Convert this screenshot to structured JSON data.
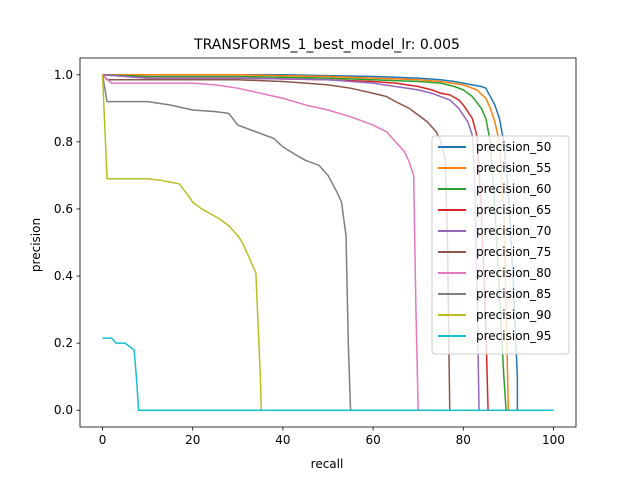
{
  "chart_data": {
    "type": "line",
    "title": "TRANSFORMS_1_best_model_lr: 0.005",
    "xlabel": "recall",
    "ylabel": "precision",
    "xlim": [
      -5,
      105
    ],
    "ylim": [
      -0.05,
      1.05
    ],
    "xticks": [
      0,
      20,
      40,
      60,
      80,
      100
    ],
    "yticks": [
      0.0,
      0.2,
      0.4,
      0.6,
      0.8,
      1.0
    ],
    "xtick_labels": [
      "0",
      "20",
      "40",
      "60",
      "80",
      "100"
    ],
    "ytick_labels": [
      "0.0",
      "0.2",
      "0.4",
      "0.6",
      "0.8",
      "1.0"
    ],
    "grid": false,
    "legend_position": "right",
    "series": [
      {
        "name": "precision_50",
        "color": "#1f77b4",
        "x": [
          0,
          10,
          20,
          40,
          60,
          70,
          75,
          78,
          80,
          82,
          84,
          85,
          86,
          87,
          88,
          89,
          90,
          91,
          92,
          92,
          100
        ],
        "y": [
          1.0,
          1.0,
          1.0,
          1.0,
          0.995,
          0.99,
          0.985,
          0.98,
          0.975,
          0.97,
          0.965,
          0.96,
          0.935,
          0.91,
          0.87,
          0.8,
          0.65,
          0.4,
          0.1,
          0.0,
          0.0
        ]
      },
      {
        "name": "precision_55",
        "color": "#ff7f0e",
        "x": [
          0,
          10,
          30,
          50,
          60,
          70,
          75,
          80,
          83,
          85,
          86,
          87,
          88,
          89,
          89.5,
          90,
          100
        ],
        "y": [
          1.0,
          1.0,
          1.0,
          0.995,
          0.99,
          0.985,
          0.98,
          0.97,
          0.955,
          0.93,
          0.9,
          0.86,
          0.8,
          0.6,
          0.3,
          0.0,
          0.0
        ]
      },
      {
        "name": "precision_60",
        "color": "#2ca02c",
        "x": [
          0,
          10,
          30,
          50,
          60,
          70,
          75,
          78,
          80,
          82,
          84,
          85,
          86,
          87,
          88,
          89,
          89.5,
          100
        ],
        "y": [
          1.0,
          0.995,
          0.995,
          0.99,
          0.985,
          0.98,
          0.975,
          0.965,
          0.955,
          0.935,
          0.9,
          0.87,
          0.8,
          0.6,
          0.35,
          0.1,
          0.0,
          0.0
        ]
      },
      {
        "name": "precision_65",
        "color": "#d62728",
        "x": [
          0,
          10,
          30,
          50,
          60,
          65,
          70,
          73,
          75,
          77,
          79,
          80,
          82,
          83,
          84,
          85,
          85.5,
          100
        ],
        "y": [
          1.0,
          0.99,
          0.99,
          0.985,
          0.98,
          0.975,
          0.965,
          0.955,
          0.945,
          0.94,
          0.925,
          0.91,
          0.87,
          0.82,
          0.6,
          0.25,
          0.0,
          0.0
        ]
      },
      {
        "name": "precision_70",
        "color": "#9467bd",
        "x": [
          0,
          10,
          30,
          50,
          60,
          65,
          70,
          73,
          75,
          77,
          79,
          80,
          81,
          82,
          82.5,
          83,
          83.5,
          100
        ],
        "y": [
          1.0,
          0.99,
          0.99,
          0.985,
          0.975,
          0.965,
          0.955,
          0.945,
          0.935,
          0.925,
          0.9,
          0.88,
          0.86,
          0.82,
          0.7,
          0.4,
          0.0,
          0.0
        ]
      },
      {
        "name": "precision_75",
        "color": "#8c564b",
        "x": [
          0,
          1,
          10,
          30,
          40,
          45,
          50,
          55,
          60,
          63,
          65,
          68,
          70,
          72,
          74,
          75,
          76,
          76.5,
          77,
          100
        ],
        "y": [
          1.0,
          0.985,
          0.985,
          0.985,
          0.98,
          0.975,
          0.97,
          0.96,
          0.945,
          0.935,
          0.92,
          0.9,
          0.88,
          0.86,
          0.83,
          0.8,
          0.75,
          0.5,
          0.0,
          0.0
        ]
      },
      {
        "name": "precision_80",
        "color": "#e377c2",
        "x": [
          0,
          2,
          10,
          20,
          25,
          30,
          35,
          40,
          45,
          50,
          55,
          60,
          63,
          65,
          67,
          68,
          69,
          69.5,
          70,
          100
        ],
        "y": [
          1.0,
          0.975,
          0.975,
          0.975,
          0.97,
          0.96,
          0.945,
          0.93,
          0.91,
          0.895,
          0.875,
          0.85,
          0.83,
          0.8,
          0.77,
          0.74,
          0.7,
          0.3,
          0.0,
          0.0
        ]
      },
      {
        "name": "precision_85",
        "color": "#7f7f7f",
        "x": [
          0,
          1,
          10,
          15,
          20,
          25,
          28,
          30,
          33,
          35,
          38,
          40,
          43,
          45,
          48,
          50,
          52,
          53,
          54,
          54.5,
          55,
          100
        ],
        "y": [
          1.0,
          0.92,
          0.92,
          0.91,
          0.895,
          0.89,
          0.885,
          0.85,
          0.835,
          0.825,
          0.81,
          0.785,
          0.76,
          0.745,
          0.73,
          0.7,
          0.65,
          0.62,
          0.52,
          0.2,
          0.0,
          0.0
        ]
      },
      {
        "name": "precision_90",
        "color": "#bcbd22",
        "x": [
          0,
          1,
          5,
          10,
          13,
          15,
          17,
          19,
          20,
          22,
          24,
          26,
          28,
          30,
          31,
          32,
          33,
          34,
          35,
          35.2,
          100
        ],
        "y": [
          1.0,
          0.69,
          0.69,
          0.69,
          0.685,
          0.68,
          0.675,
          0.64,
          0.62,
          0.6,
          0.585,
          0.57,
          0.55,
          0.52,
          0.5,
          0.47,
          0.44,
          0.41,
          0.1,
          0.0,
          0.0
        ]
      },
      {
        "name": "precision_95",
        "color": "#17becf",
        "x": [
          0,
          2,
          3,
          5,
          6,
          7,
          7.5,
          8,
          100
        ],
        "y": [
          0.215,
          0.215,
          0.2,
          0.2,
          0.19,
          0.18,
          0.1,
          0.0,
          0.0
        ]
      }
    ]
  }
}
